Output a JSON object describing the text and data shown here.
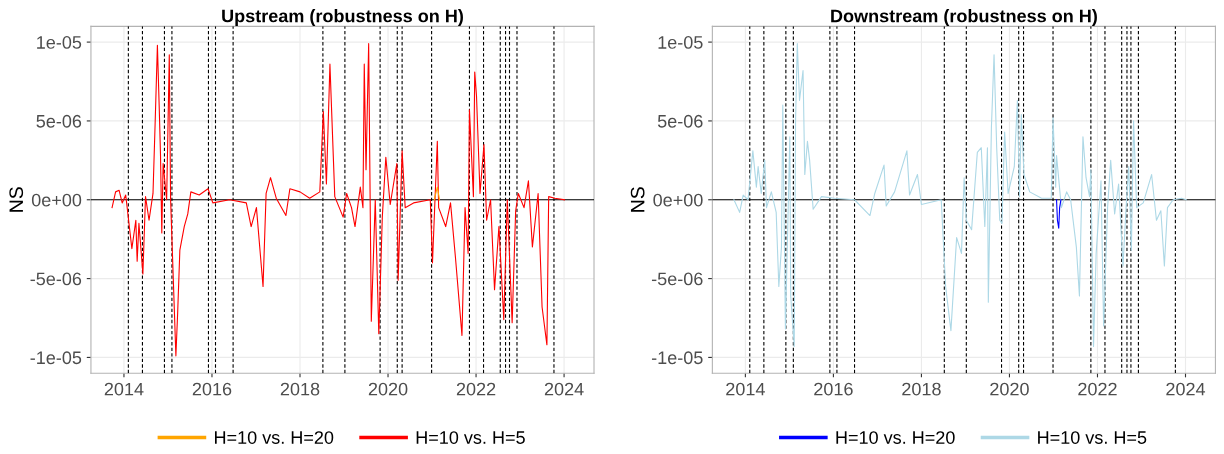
{
  "chart_data": [
    {
      "type": "line",
      "title": "Upstream (robustness on H)",
      "ylabel": "NS",
      "xlim": [
        2013.25,
        2024.68
      ],
      "xticks": [
        2014,
        2016,
        2018,
        2020,
        2022,
        2024
      ],
      "ylim": [
        -1.1e-05,
        1.1e-05
      ],
      "yticks": [
        {
          "value": 1e-05,
          "label": "1e-05"
        },
        {
          "value": 5e-06,
          "label": "5e-06"
        },
        {
          "value": 0,
          "label": "0e+00"
        },
        {
          "value": -5e-06,
          "label": "-5e-06"
        },
        {
          "value": -1e-05,
          "label": "-1e-05"
        }
      ],
      "grid": true,
      "legend": "bottom",
      "series": [
        {
          "name": "H=10 vs. H=20",
          "color": "#ffa500",
          "x": [
            2021.05,
            2021.12,
            2021.17
          ],
          "values": [
            0,
            8e-07,
            0
          ]
        },
        {
          "name": "H=10 vs. H=5",
          "color": "#ff0000",
          "x": [
            2013.73,
            2013.81,
            2013.89,
            2013.96,
            2014.04,
            2014.18,
            2014.27,
            2014.3,
            2014.34,
            2014.43,
            2014.49,
            2014.57,
            2014.66,
            2014.71,
            2014.76,
            2014.8,
            2014.83,
            2014.86,
            2014.89,
            2014.97,
            2015.03,
            2015.06,
            2015.18,
            2015.22,
            2015.27,
            2015.37,
            2015.45,
            2015.52,
            2015.71,
            2015.91,
            2016.02,
            2016.4,
            2016.78,
            2016.89,
            2017.01,
            2017.16,
            2017.23,
            2017.33,
            2017.46,
            2017.68,
            2017.77,
            2018.0,
            2018.22,
            2018.45,
            2018.53,
            2018.6,
            2018.68,
            2018.79,
            2018.98,
            2019.06,
            2019.17,
            2019.25,
            2019.37,
            2019.43,
            2019.46,
            2019.5,
            2019.56,
            2019.62,
            2019.71,
            2019.79,
            2019.87,
            2019.95,
            2020.05,
            2020.2,
            2020.23,
            2020.32,
            2020.39,
            2020.58,
            2020.96,
            2021.01,
            2021.12,
            2021.15,
            2021.31,
            2021.42,
            2021.53,
            2021.68,
            2021.75,
            2021.82,
            2021.85,
            2021.94,
            2021.97,
            2022.01,
            2022.09,
            2022.18,
            2022.24,
            2022.33,
            2022.42,
            2022.52,
            2022.63,
            2022.71,
            2022.82,
            2022.9,
            2022.96,
            2023.09,
            2023.19,
            2023.28,
            2023.41,
            2023.5,
            2023.61,
            2023.65,
            2023.79,
            2024.01
          ],
          "values": [
            -5e-07,
            5e-07,
            6e-07,
            -2e-07,
            3e-07,
            -3.1e-06,
            -1.3e-06,
            -3.9e-06,
            -1.5e-06,
            -4.7e-06,
            2e-07,
            -1.3e-06,
            4e-07,
            5e-06,
            9.8e-06,
            6e-06,
            2.9e-06,
            -2.1e-06,
            2.3e-06,
            0,
            9.2e-06,
            0,
            -9.9e-06,
            -7.2e-06,
            -3.2e-06,
            -1.7e-06,
            -9e-07,
            5e-07,
            3e-07,
            7e-07,
            -2e-07,
            0,
            -2e-07,
            -1.7e-06,
            -5e-07,
            -5.5e-06,
            4e-07,
            1.4e-06,
            1e-07,
            -1e-06,
            7e-07,
            5e-07,
            1e-07,
            5e-07,
            5.6e-06,
            1e-06,
            8.6e-06,
            2e-07,
            -1.1e-06,
            4e-07,
            -5e-07,
            -1.7e-06,
            8e-07,
            -5e-07,
            8.6e-06,
            1.9e-06,
            9.9e-06,
            -7.7e-06,
            0,
            -8.5e-06,
            -1.1e-06,
            2.7e-06,
            -3e-07,
            2.3e-06,
            -5.1e-06,
            3.1e-06,
            -5e-07,
            -2e-07,
            0,
            -4e-06,
            3.7e-06,
            -5e-07,
            -1.7e-06,
            -2e-07,
            -3.6e-06,
            -8.6e-06,
            -5e-07,
            -3.4e-06,
            5.7e-06,
            2e-07,
            8.1e-06,
            6.6e-06,
            4e-07,
            3.5e-06,
            -1.3e-06,
            0,
            -5.7e-06,
            -1.7e-06,
            -7.6e-06,
            0,
            -7.8e-06,
            -7e-07,
            4e-07,
            -5e-07,
            1.2e-06,
            -3e-06,
            4e-07,
            -6.8e-06,
            -9.2e-06,
            2e-07,
            1e-07,
            0
          ]
        }
      ],
      "ref_lines": [
        {
          "axis": "y",
          "value": 0,
          "color": "#000000",
          "line_style": "solid"
        },
        {
          "axis": "x",
          "value": 2014.1,
          "color": "#000000",
          "line_style": "dashed"
        },
        {
          "axis": "x",
          "value": 2014.42,
          "color": "#000000",
          "line_style": "dashed"
        },
        {
          "axis": "x",
          "value": 2014.92,
          "color": "#000000",
          "line_style": "dashed"
        },
        {
          "axis": "x",
          "value": 2015.09,
          "color": "#000000",
          "line_style": "dashed"
        },
        {
          "axis": "x",
          "value": 2015.92,
          "color": "#000000",
          "line_style": "dashed"
        },
        {
          "axis": "x",
          "value": 2016.08,
          "color": "#000000",
          "line_style": "dashed"
        },
        {
          "axis": "x",
          "value": 2016.48,
          "color": "#000000",
          "line_style": "dashed"
        },
        {
          "axis": "x",
          "value": 2018.52,
          "color": "#000000",
          "line_style": "dashed"
        },
        {
          "axis": "x",
          "value": 2019.02,
          "color": "#000000",
          "line_style": "dashed"
        },
        {
          "axis": "x",
          "value": 2019.82,
          "color": "#000000",
          "line_style": "dashed"
        },
        {
          "axis": "x",
          "value": 2020.21,
          "color": "#000000",
          "line_style": "dashed"
        },
        {
          "axis": "x",
          "value": 2020.32,
          "color": "#000000",
          "line_style": "dashed"
        },
        {
          "axis": "x",
          "value": 2020.99,
          "color": "#000000",
          "line_style": "dashed"
        },
        {
          "axis": "x",
          "value": 2021.85,
          "color": "#000000",
          "line_style": "dashed"
        },
        {
          "axis": "x",
          "value": 2022.17,
          "color": "#000000",
          "line_style": "dashed"
        },
        {
          "axis": "x",
          "value": 2022.55,
          "color": "#000000",
          "line_style": "dashed"
        },
        {
          "axis": "x",
          "value": 2022.67,
          "color": "#000000",
          "line_style": "dashed"
        },
        {
          "axis": "x",
          "value": 2022.76,
          "color": "#000000",
          "line_style": "dashed"
        },
        {
          "axis": "x",
          "value": 2022.93,
          "color": "#000000",
          "line_style": "dashed"
        },
        {
          "axis": "x",
          "value": 2023.77,
          "color": "#000000",
          "line_style": "dashed"
        }
      ]
    },
    {
      "type": "line",
      "title": "Downstream (robustness on H)",
      "ylabel": "NS",
      "xlim": [
        2013.25,
        2024.68
      ],
      "xticks": [
        2014,
        2016,
        2018,
        2020,
        2022,
        2024
      ],
      "ylim": [
        -1.1e-05,
        1.1e-05
      ],
      "yticks": [
        {
          "value": 1e-05,
          "label": "1e-05"
        },
        {
          "value": 5e-06,
          "label": "5e-06"
        },
        {
          "value": 0,
          "label": "0e+00"
        },
        {
          "value": -5e-06,
          "label": "-5e-06"
        },
        {
          "value": -1e-05,
          "label": "-1e-05"
        }
      ],
      "grid": true,
      "legend": "bottom",
      "series": [
        {
          "name": "H=10 vs. H=20",
          "color": "#0000ff",
          "x": [
            2021.07,
            2021.09,
            2021.12,
            2021.14,
            2021.17
          ],
          "values": [
            0,
            -1.3e-06,
            -1.8e-06,
            -5e-07,
            0
          ]
        },
        {
          "name": "H=10 vs. H=5",
          "color": "#add8e6",
          "x": [
            2013.74,
            2013.87,
            2013.95,
            2014.06,
            2014.17,
            2014.25,
            2014.29,
            2014.36,
            2014.44,
            2014.48,
            2014.59,
            2014.7,
            2014.76,
            2014.82,
            2014.85,
            2014.91,
            2015.01,
            2015.03,
            2015.11,
            2015.14,
            2015.18,
            2015.23,
            2015.31,
            2015.35,
            2015.41,
            2015.46,
            2015.54,
            2015.73,
            2016.03,
            2016.48,
            2016.83,
            2016.94,
            2017.15,
            2017.2,
            2017.39,
            2017.67,
            2017.73,
            2017.91,
            2018.0,
            2018.45,
            2018.55,
            2018.67,
            2018.8,
            2018.91,
            2018.97,
            2019.02,
            2019.14,
            2019.27,
            2019.36,
            2019.44,
            2019.5,
            2019.52,
            2019.59,
            2019.65,
            2019.71,
            2019.78,
            2019.83,
            2019.89,
            2019.97,
            2020.11,
            2020.18,
            2020.23,
            2020.27,
            2020.33,
            2020.46,
            2020.73,
            2020.95,
            2020.99,
            2021.05,
            2021.07,
            2021.18,
            2021.3,
            2021.39,
            2021.52,
            2021.59,
            2021.67,
            2021.74,
            2021.82,
            2021.85,
            2021.91,
            2021.97,
            2022.08,
            2022.14,
            2022.23,
            2022.3,
            2022.39,
            2022.48,
            2022.58,
            2022.65,
            2022.71,
            2022.77,
            2022.82,
            2022.89,
            2023.04,
            2023.23,
            2023.34,
            2023.44,
            2023.52,
            2023.59,
            2023.72,
            2023.91,
            2024.02
          ],
          "values": [
            0,
            -8e-07,
            3e-07,
            0,
            3.1e-06,
            8e-07,
            2.1e-06,
            4e-07,
            2.5e-06,
            -5e-07,
            5e-07,
            -8e-07,
            -5.5e-06,
            -3e-06,
            6e-06,
            -8.2e-06,
            4e-06,
            -6.1e-06,
            -9.3e-06,
            5e-06,
            9.9e-06,
            6.3e-06,
            8.2e-06,
            1.6e-06,
            3.7e-06,
            2.5e-06,
            -6e-07,
            2e-07,
            1e-07,
            0,
            -1e-06,
            4e-07,
            2.2e-06,
            -4e-07,
            5e-07,
            3.1e-06,
            3e-07,
            1.6e-06,
            -3e-07,
            0,
            -5.5e-06,
            -8.3e-06,
            -2.4e-06,
            -3.4e-06,
            1.4e-06,
            -1.3e-06,
            -1.9e-06,
            3e-06,
            3.3e-06,
            -1.7e-06,
            3.3e-06,
            -6.5e-06,
            4.6e-06,
            9.2e-06,
            3.3e-06,
            -1.3e-06,
            -1.5e-06,
            4.3e-06,
            4e-07,
            2.1e-06,
            6.3e-06,
            2e-07,
            5.4e-06,
            1.6e-06,
            5e-07,
            1e-07,
            1e-07,
            5.2e-06,
            8e-07,
            2.8e-06,
            -5e-07,
            5e-07,
            0,
            -3e-06,
            -6.1e-06,
            4e-06,
            1.4e-06,
            2e-07,
            1.9e-06,
            -9.3e-06,
            -3.4e-06,
            1.2e-06,
            -8e-06,
            -5e-07,
            2.5e-06,
            -9e-07,
            1e-06,
            -4.2e-06,
            -5e-07,
            2.1e-06,
            -3.2e-06,
            5e-06,
            -5e-07,
            -2e-07,
            1.6e-06,
            -1.3e-06,
            -7e-07,
            -4.2e-06,
            -5e-07,
            0,
            1e-07,
            0
          ]
        }
      ],
      "ref_lines": [
        {
          "axis": "y",
          "value": 0,
          "color": "#000000",
          "line_style": "solid"
        },
        {
          "axis": "x",
          "value": 2014.1,
          "color": "#000000",
          "line_style": "dashed"
        },
        {
          "axis": "x",
          "value": 2014.42,
          "color": "#000000",
          "line_style": "dashed"
        },
        {
          "axis": "x",
          "value": 2014.92,
          "color": "#000000",
          "line_style": "dashed"
        },
        {
          "axis": "x",
          "value": 2015.09,
          "color": "#000000",
          "line_style": "dashed"
        },
        {
          "axis": "x",
          "value": 2015.92,
          "color": "#000000",
          "line_style": "dashed"
        },
        {
          "axis": "x",
          "value": 2016.08,
          "color": "#000000",
          "line_style": "dashed"
        },
        {
          "axis": "x",
          "value": 2016.48,
          "color": "#000000",
          "line_style": "dashed"
        },
        {
          "axis": "x",
          "value": 2018.52,
          "color": "#000000",
          "line_style": "dashed"
        },
        {
          "axis": "x",
          "value": 2019.02,
          "color": "#000000",
          "line_style": "dashed"
        },
        {
          "axis": "x",
          "value": 2019.82,
          "color": "#000000",
          "line_style": "dashed"
        },
        {
          "axis": "x",
          "value": 2020.21,
          "color": "#000000",
          "line_style": "dashed"
        },
        {
          "axis": "x",
          "value": 2020.32,
          "color": "#000000",
          "line_style": "dashed"
        },
        {
          "axis": "x",
          "value": 2020.99,
          "color": "#000000",
          "line_style": "dashed"
        },
        {
          "axis": "x",
          "value": 2021.85,
          "color": "#000000",
          "line_style": "dashed"
        },
        {
          "axis": "x",
          "value": 2022.17,
          "color": "#000000",
          "line_style": "dashed"
        },
        {
          "axis": "x",
          "value": 2022.55,
          "color": "#000000",
          "line_style": "dashed"
        },
        {
          "axis": "x",
          "value": 2022.67,
          "color": "#000000",
          "line_style": "dashed"
        },
        {
          "axis": "x",
          "value": 2022.76,
          "color": "#000000",
          "line_style": "dashed"
        },
        {
          "axis": "x",
          "value": 2022.93,
          "color": "#000000",
          "line_style": "dashed"
        },
        {
          "axis": "x",
          "value": 2023.77,
          "color": "#000000",
          "line_style": "dashed"
        }
      ]
    }
  ]
}
